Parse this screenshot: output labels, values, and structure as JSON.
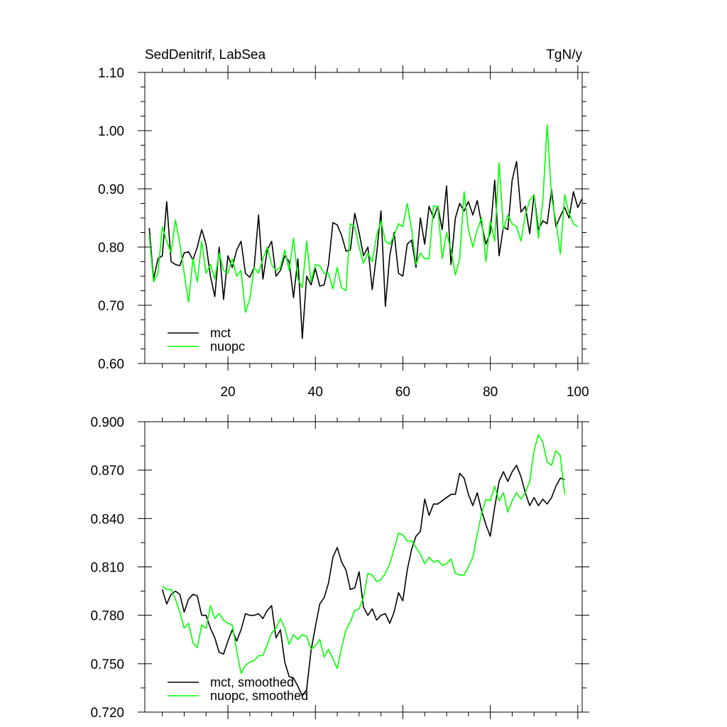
{
  "colors": {
    "mct": "#000000",
    "nuopc": "#00ff00"
  },
  "chart_data": [
    {
      "type": "line",
      "title": "SedDenitrif, LabSea",
      "units": "TgN/y",
      "xlim": [
        1,
        101
      ],
      "ylim": [
        0.6,
        1.1
      ],
      "xticks": [
        20,
        40,
        60,
        80,
        100
      ],
      "xtick_labels": [
        "20",
        "40",
        "60",
        "80",
        "100"
      ],
      "yticks": [
        0.6,
        0.7,
        0.8,
        0.9,
        1.0,
        1.1
      ],
      "ytick_labels": [
        "0.60",
        "0.70",
        "0.80",
        "0.90",
        "1.00",
        "1.10"
      ],
      "legend": [
        "mct",
        "nuopc"
      ],
      "legend_position": "bottom-left",
      "series": [
        {
          "name": "mct",
          "color": "#000000",
          "x_start": 2,
          "x_step": 1,
          "values": [
            0.833,
            0.745,
            0.78,
            0.785,
            0.878,
            0.775,
            0.77,
            0.768,
            0.79,
            0.792,
            0.778,
            0.8,
            0.83,
            0.805,
            0.75,
            0.715,
            0.8,
            0.71,
            0.785,
            0.765,
            0.795,
            0.81,
            0.755,
            0.748,
            0.765,
            0.855,
            0.745,
            0.795,
            0.81,
            0.75,
            0.76,
            0.785,
            0.775,
            0.713,
            0.78,
            0.643,
            0.75,
            0.735,
            0.763,
            0.733,
            0.735,
            0.77,
            0.842,
            0.838,
            0.82,
            0.793,
            0.795,
            0.858,
            0.825,
            0.785,
            0.8,
            0.727,
            0.788,
            0.862,
            0.698,
            0.785,
            0.825,
            0.755,
            0.75,
            0.805,
            0.812,
            0.765,
            0.85,
            0.805,
            0.87,
            0.85,
            0.87,
            0.83,
            0.905,
            0.77,
            0.85,
            0.875,
            0.862,
            0.878,
            0.855,
            0.88,
            0.84,
            0.805,
            0.825,
            0.915,
            0.785,
            0.835,
            0.83,
            0.915,
            0.947,
            0.86,
            0.87,
            0.823,
            0.89,
            0.83,
            0.845,
            0.84,
            0.898,
            0.835,
            0.853,
            0.868,
            0.85,
            0.895,
            0.868,
            0.883
          ]
        },
        {
          "name": "nuopc",
          "color": "#00ff00",
          "x_start": 2,
          "x_step": 1,
          "values": [
            0.82,
            0.74,
            0.755,
            0.835,
            0.81,
            0.79,
            0.847,
            0.805,
            0.755,
            0.705,
            0.78,
            0.74,
            0.81,
            0.755,
            0.77,
            0.745,
            0.79,
            0.76,
            0.755,
            0.78,
            0.75,
            0.76,
            0.688,
            0.71,
            0.765,
            0.755,
            0.78,
            0.8,
            0.77,
            0.76,
            0.765,
            0.795,
            0.76,
            0.815,
            0.745,
            0.73,
            0.81,
            0.74,
            0.77,
            0.768,
            0.755,
            0.755,
            0.728,
            0.765,
            0.73,
            0.725,
            0.84,
            0.835,
            0.8,
            0.772,
            0.79,
            0.775,
            0.82,
            0.845,
            0.81,
            0.805,
            0.82,
            0.84,
            0.835,
            0.875,
            0.83,
            0.77,
            0.79,
            0.78,
            0.78,
            0.87,
            0.87,
            0.78,
            0.825,
            0.795,
            0.752,
            0.78,
            0.895,
            0.83,
            0.8,
            0.83,
            0.85,
            0.775,
            0.845,
            0.81,
            0.945,
            0.83,
            0.855,
            0.84,
            0.835,
            0.81,
            0.855,
            0.88,
            0.89,
            0.815,
            0.88,
            1.01,
            0.885,
            0.845,
            0.788,
            0.89,
            0.858,
            0.84,
            0.835
          ]
        }
      ]
    },
    {
      "type": "line",
      "xlim": [
        1,
        101
      ],
      "ylim": [
        0.72,
        0.9
      ],
      "xticks": [
        20,
        40,
        60,
        80,
        100
      ],
      "yticks": [
        0.72,
        0.75,
        0.78,
        0.81,
        0.84,
        0.87,
        0.9
      ],
      "ytick_labels": [
        "0.720",
        "0.750",
        "0.780",
        "0.810",
        "0.840",
        "0.870",
        "0.900"
      ],
      "legend": [
        "mct, smoothed",
        "nuopc, smoothed"
      ],
      "legend_position": "bottom-left",
      "series": [
        {
          "name": "mct, smoothed",
          "color": "#000000",
          "x_start": 5,
          "x_step": 1,
          "values": [
            0.796,
            0.787,
            0.793,
            0.795,
            0.793,
            0.782,
            0.79,
            0.793,
            0.792,
            0.78,
            0.78,
            0.772,
            0.766,
            0.757,
            0.756,
            0.764,
            0.771,
            0.764,
            0.771,
            0.781,
            0.78,
            0.78,
            0.781,
            0.778,
            0.783,
            0.786,
            0.766,
            0.771,
            0.751,
            0.742,
            0.741,
            0.736,
            0.73,
            0.734,
            0.758,
            0.773,
            0.787,
            0.791,
            0.8,
            0.816,
            0.822,
            0.813,
            0.808,
            0.796,
            0.797,
            0.807,
            0.785,
            0.78,
            0.784,
            0.777,
            0.78,
            0.781,
            0.775,
            0.782,
            0.794,
            0.789,
            0.808,
            0.821,
            0.829,
            0.832,
            0.852,
            0.842,
            0.849,
            0.849,
            0.851,
            0.853,
            0.855,
            0.855,
            0.868,
            0.865,
            0.855,
            0.848,
            0.856,
            0.845,
            0.836,
            0.829,
            0.847,
            0.863,
            0.869,
            0.863,
            0.869,
            0.873,
            0.866,
            0.856,
            0.848,
            0.853,
            0.848,
            0.852,
            0.849,
            0.853,
            0.86,
            0.865,
            0.864
          ]
        },
        {
          "name": "nuopc, smoothed",
          "color": "#00ff00",
          "x_start": 5,
          "x_step": 1,
          "values": [
            0.798,
            0.796,
            0.796,
            0.79,
            0.782,
            0.772,
            0.775,
            0.763,
            0.76,
            0.774,
            0.772,
            0.786,
            0.778,
            0.781,
            0.777,
            0.775,
            0.774,
            0.758,
            0.744,
            0.749,
            0.751,
            0.752,
            0.755,
            0.755,
            0.762,
            0.769,
            0.772,
            0.778,
            0.772,
            0.762,
            0.768,
            0.765,
            0.768,
            0.767,
            0.759,
            0.761,
            0.765,
            0.754,
            0.759,
            0.753,
            0.747,
            0.76,
            0.771,
            0.776,
            0.783,
            0.784,
            0.791,
            0.806,
            0.805,
            0.801,
            0.802,
            0.806,
            0.812,
            0.821,
            0.831,
            0.83,
            0.826,
            0.826,
            0.822,
            0.818,
            0.812,
            0.816,
            0.813,
            0.814,
            0.811,
            0.812,
            0.815,
            0.806,
            0.805,
            0.805,
            0.81,
            0.816,
            0.83,
            0.843,
            0.852,
            0.851,
            0.86,
            0.851,
            0.856,
            0.844,
            0.851,
            0.856,
            0.852,
            0.856,
            0.863,
            0.882,
            0.892,
            0.887,
            0.875,
            0.873,
            0.882,
            0.879,
            0.855
          ]
        }
      ]
    }
  ]
}
